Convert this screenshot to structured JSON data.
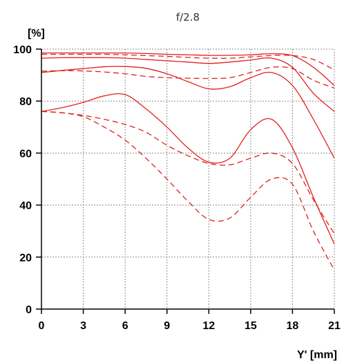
{
  "chart_data": {
    "type": "line",
    "title": "f/2.8",
    "xlabel": "Y' [mm]",
    "ylabel": "[%]",
    "xlim": [
      0,
      21
    ],
    "ylim": [
      0,
      100
    ],
    "xticks": [
      "0",
      "3",
      "6",
      "9",
      "12",
      "15",
      "18",
      "21"
    ],
    "yticks": [
      "0",
      "20",
      "40",
      "60",
      "80",
      "100"
    ],
    "grid": true,
    "line_color": "#e0201c",
    "x": [
      0,
      1.5,
      3,
      4.5,
      6,
      7.5,
      9,
      10.5,
      12,
      13.5,
      15,
      16.5,
      18,
      19.5,
      21
    ],
    "series": [
      {
        "style": "solid",
        "values": [
          98.5,
          98.5,
          98.5,
          98.5,
          98.5,
          98.3,
          98.0,
          97.8,
          97.6,
          97.6,
          97.8,
          98.2,
          97.5,
          93.0,
          86.0
        ]
      },
      {
        "style": "dashed",
        "values": [
          98.0,
          98.0,
          98.0,
          98.0,
          97.8,
          97.5,
          97.2,
          96.8,
          96.5,
          96.5,
          97.0,
          97.5,
          97.5,
          96.0,
          92.0
        ]
      },
      {
        "style": "solid",
        "values": [
          96.5,
          96.7,
          96.7,
          96.7,
          96.5,
          96.0,
          95.5,
          95.0,
          94.5,
          95.0,
          95.8,
          96.5,
          93.0,
          83.0,
          76.0
        ]
      },
      {
        "style": "dashed",
        "values": [
          91.5,
          91.7,
          91.6,
          91.2,
          90.5,
          89.5,
          89.0,
          88.8,
          88.7,
          89.0,
          91.0,
          93.0,
          92.5,
          88.0,
          85.0
        ]
      },
      {
        "style": "solid",
        "values": [
          91.0,
          91.8,
          92.5,
          93.2,
          93.3,
          92.6,
          90.5,
          87.5,
          84.7,
          85.5,
          89.0,
          91.0,
          86.0,
          73.0,
          58.0
        ]
      },
      {
        "style": "dashed",
        "values": [
          76.0,
          75.5,
          74.5,
          73.0,
          71.0,
          68.0,
          63.0,
          59.0,
          56.0,
          55.5,
          58.0,
          60.0,
          56.0,
          42.0,
          29.0
        ]
      },
      {
        "style": "solid",
        "values": [
          76.0,
          77.5,
          79.5,
          82.0,
          82.5,
          77.0,
          70.0,
          62.0,
          56.5,
          58.0,
          69.0,
          73.0,
          62.0,
          43.0,
          25.0
        ]
      },
      {
        "style": "dashed",
        "values": [
          76.0,
          75.5,
          74.0,
          70.0,
          65.0,
          58.0,
          50.0,
          41.5,
          34.5,
          35.0,
          43.0,
          50.0,
          48.0,
          30.0,
          15.0
        ]
      }
    ]
  }
}
